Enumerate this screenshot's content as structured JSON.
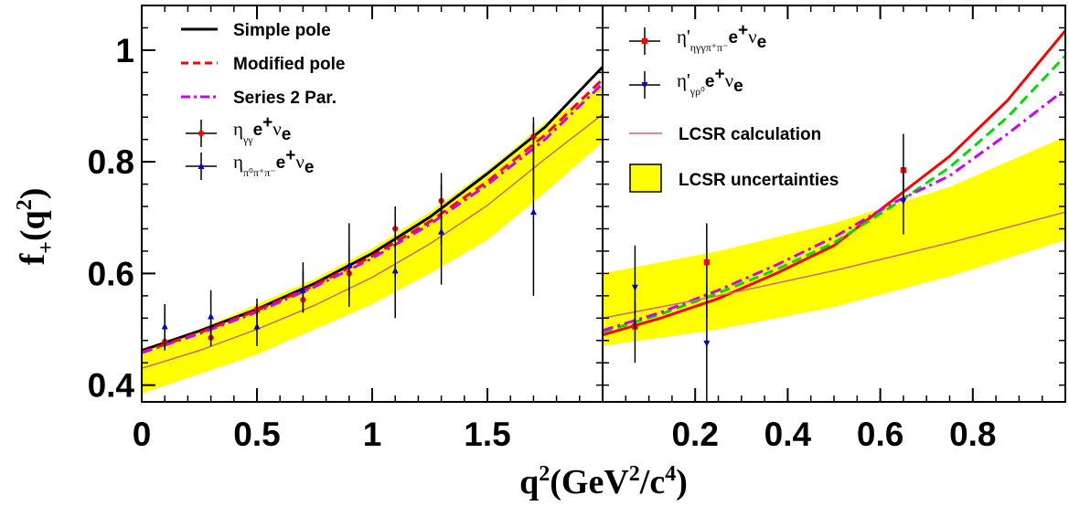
{
  "chart_data": [
    {
      "panel": "left",
      "type": "line",
      "xlim": [
        0,
        2.0
      ],
      "ylim": [
        0.37,
        1.08
      ],
      "xticks": [
        {
          "v": 0,
          "label": "0"
        },
        {
          "v": 0.5,
          "label": "0.5"
        },
        {
          "v": 1.0,
          "label": "1"
        },
        {
          "v": 1.5,
          "label": "1.5"
        }
      ],
      "yticks": [
        {
          "v": 0.4,
          "label": "0.4"
        },
        {
          "v": 0.6,
          "label": "0.6"
        },
        {
          "v": 0.8,
          "label": "0.8"
        },
        {
          "v": 1.0,
          "label": "1"
        }
      ],
      "band": {
        "name": "LCSR uncertainties",
        "color": "#ffff00",
        "x": [
          0,
          0.25,
          0.5,
          0.75,
          1.0,
          1.25,
          1.5,
          1.75,
          2.0
        ],
        "lower": [
          0.385,
          0.42,
          0.455,
          0.5,
          0.545,
          0.6,
          0.66,
          0.745,
          0.835
        ],
        "upper": [
          0.465,
          0.5,
          0.545,
          0.59,
          0.645,
          0.71,
          0.785,
          0.87,
          0.935
        ]
      },
      "series": [
        {
          "name": "Simple pole",
          "style": "solid",
          "color": "#000000",
          "width": 3,
          "x": [
            0,
            0.25,
            0.5,
            0.75,
            1.0,
            1.25,
            1.5,
            1.75,
            2.0
          ],
          "y": [
            0.462,
            0.497,
            0.536,
            0.582,
            0.636,
            0.701,
            0.779,
            0.862,
            0.97
          ]
        },
        {
          "name": "Modified pole",
          "style": "dashed",
          "color": "#ff0000",
          "width": 3,
          "x": [
            0,
            0.25,
            0.5,
            0.75,
            1.0,
            1.25,
            1.5,
            1.75,
            2.0
          ],
          "y": [
            0.459,
            0.494,
            0.534,
            0.579,
            0.631,
            0.693,
            0.765,
            0.848,
            0.948
          ]
        },
        {
          "name": "Series 2 Par.",
          "style": "dashdot",
          "color": "#cc00ff",
          "width": 3,
          "x": [
            0,
            0.25,
            0.5,
            0.75,
            1.0,
            1.25,
            1.5,
            1.75,
            2.0
          ],
          "y": [
            0.458,
            0.492,
            0.531,
            0.576,
            0.627,
            0.688,
            0.759,
            0.84,
            0.94
          ]
        },
        {
          "name": "LCSR calculation",
          "style": "solid",
          "color": "#cc6677",
          "width": 1.5,
          "legend": false,
          "x": [
            0,
            0.25,
            0.5,
            0.75,
            1.0,
            1.25,
            1.5,
            1.75,
            2.0
          ],
          "y": [
            0.43,
            0.462,
            0.5,
            0.543,
            0.593,
            0.653,
            0.722,
            0.805,
            0.885
          ]
        }
      ],
      "points": [
        {
          "name": "ηγγ e+νe",
          "marker": "circle",
          "color": "#ff0000",
          "data": [
            {
              "x": 0.1,
              "y": 0.478,
              "lo": 0.462,
              "hi": 0.53
            },
            {
              "x": 0.3,
              "y": 0.485,
              "lo": 0.47,
              "hi": 0.52
            },
            {
              "x": 0.5,
              "y": 0.536,
              "lo": 0.5,
              "hi": 0.555
            },
            {
              "x": 0.7,
              "y": 0.553,
              "lo": 0.53,
              "hi": 0.62
            },
            {
              "x": 0.9,
              "y": 0.6,
              "lo": 0.54,
              "hi": 0.69
            },
            {
              "x": 1.1,
              "y": 0.68,
              "lo": 0.59,
              "hi": 0.72
            },
            {
              "x": 1.3,
              "y": 0.73,
              "lo": 0.65,
              "hi": 0.78
            },
            {
              "x": 1.7,
              "y": 0.845,
              "lo": 0.74,
              "hi": 0.88
            }
          ]
        },
        {
          "name": "ηπ0π+π- e+νe",
          "marker": "triangle",
          "color": "#0000cc",
          "data": [
            {
              "x": 0.1,
              "y": 0.505,
              "lo": 0.47,
              "hi": 0.545
            },
            {
              "x": 0.3,
              "y": 0.523,
              "lo": 0.48,
              "hi": 0.57
            },
            {
              "x": 0.5,
              "y": 0.505,
              "lo": 0.47,
              "hi": 0.545
            },
            {
              "x": 0.7,
              "y": 0.57,
              "lo": 0.53,
              "hi": 0.605
            },
            {
              "x": 0.9,
              "y": 0.615,
              "lo": 0.56,
              "hi": 0.65
            },
            {
              "x": 1.1,
              "y": 0.605,
              "lo": 0.52,
              "hi": 0.69
            },
            {
              "x": 1.3,
              "y": 0.675,
              "lo": 0.58,
              "hi": 0.76
            },
            {
              "x": 1.7,
              "y": 0.71,
              "lo": 0.56,
              "hi": 0.87
            }
          ]
        }
      ]
    },
    {
      "panel": "right",
      "type": "line",
      "xlim": [
        0,
        1.0
      ],
      "ylim": [
        0.37,
        1.08
      ],
      "xticks": [
        {
          "v": 0.2,
          "label": "0.2"
        },
        {
          "v": 0.4,
          "label": "0.4"
        },
        {
          "v": 0.6,
          "label": "0.6"
        },
        {
          "v": 0.8,
          "label": "0.8"
        }
      ],
      "band": {
        "name": "LCSR uncertainties",
        "color": "#ffff00",
        "x": [
          0,
          0.25,
          0.5,
          0.75,
          1.0
        ],
        "lower": [
          0.47,
          0.5,
          0.54,
          0.595,
          0.66
        ],
        "upper": [
          0.6,
          0.64,
          0.69,
          0.755,
          0.845
        ]
      },
      "series": [
        {
          "name": "η'γρ0 e+νe",
          "style": "solid",
          "color": "#ff0000",
          "width": 3,
          "legend": false,
          "x": [
            0,
            0.125,
            0.25,
            0.375,
            0.5,
            0.625,
            0.75,
            0.875,
            1.0
          ],
          "y": [
            0.49,
            0.52,
            0.555,
            0.6,
            0.65,
            0.73,
            0.81,
            0.91,
            1.035
          ]
        },
        {
          "name": "η'ηγγπ+π- e+νe",
          "style": "dashed",
          "color": "#00dd00",
          "width": 3,
          "legend": false,
          "x": [
            0,
            0.125,
            0.25,
            0.375,
            0.5,
            0.625,
            0.75,
            0.875,
            1.0
          ],
          "y": [
            0.495,
            0.527,
            0.565,
            0.607,
            0.655,
            0.72,
            0.79,
            0.88,
            0.99
          ]
        },
        {
          "name": "Series 2 Par.",
          "style": "dashdot",
          "color": "#cc00ff",
          "width": 3,
          "legend": false,
          "x": [
            0,
            0.125,
            0.25,
            0.375,
            0.5,
            0.625,
            0.75,
            0.875,
            1.0
          ],
          "y": [
            0.498,
            0.53,
            0.57,
            0.615,
            0.665,
            0.725,
            0.775,
            0.85,
            0.93
          ]
        },
        {
          "name": "LCSR calculation",
          "style": "solid",
          "color": "#cc6677",
          "width": 1.5,
          "x": [
            0,
            0.25,
            0.5,
            0.75,
            1.0
          ],
          "y": [
            0.52,
            0.56,
            0.605,
            0.655,
            0.71
          ]
        }
      ],
      "points": [
        {
          "name": "η'ηγγπ+π- e+νe",
          "marker": "square",
          "color": "#ff0000",
          "data": [
            {
              "x": 0.07,
              "y": 0.505,
              "lo": 0.44,
              "hi": 0.55
            },
            {
              "x": 0.225,
              "y": 0.62,
              "lo": 0.52,
              "hi": 0.69
            },
            {
              "x": 0.65,
              "y": 0.785,
              "lo": 0.73,
              "hi": 0.85
            }
          ]
        },
        {
          "name": "η'γρ0 e+νe",
          "marker": "triangle-down",
          "color": "#0000cc",
          "data": [
            {
              "x": 0.07,
              "y": 0.575,
              "lo": 0.5,
              "hi": 0.65
            },
            {
              "x": 0.225,
              "y": 0.475,
              "lo": 0.37,
              "hi": 0.58
            },
            {
              "x": 0.65,
              "y": 0.73,
              "lo": 0.67,
              "hi": 0.79
            }
          ]
        }
      ]
    }
  ],
  "legend_left": {
    "line_items": [
      {
        "label": "Simple pole",
        "style": "solid",
        "color": "#000000"
      },
      {
        "label": "Modified pole",
        "style": "dashed",
        "color": "#ff0000"
      },
      {
        "label": "Series 2 Par.",
        "style": "dashdot",
        "color": "#cc00ff"
      }
    ],
    "point_items": [
      {
        "sym": "η",
        "sub": "γγ",
        "rest": "e",
        "sup": "+",
        "nu": "ν",
        "nusub": "e",
        "marker": "circle",
        "color": "#ff0000"
      },
      {
        "sym": "η",
        "sub": "π⁰π⁺π⁻",
        "rest": "e",
        "sup": "+",
        "nu": "ν",
        "nusub": "e",
        "marker": "triangle",
        "color": "#0000cc"
      }
    ]
  },
  "legend_right": {
    "point_items": [
      {
        "sym": "η'",
        "sub": "ηγγπ⁺π⁻",
        "rest": "e",
        "sup": "+",
        "nu": "ν",
        "nusub": "e",
        "marker": "square",
        "color": "#ff0000"
      },
      {
        "sym": "η'",
        "sub": "γρ⁰",
        "rest": "e",
        "sup": "+",
        "nu": "ν",
        "nusub": "e",
        "marker": "triangle-down",
        "color": "#0000cc"
      }
    ],
    "line_item": {
      "label": "LCSR calculation",
      "color": "#cc6677"
    },
    "band_item": {
      "label": "LCSR uncertainties",
      "color": "#ffff00"
    }
  },
  "axes": {
    "ylabel_main": "f",
    "ylabel_sub": "+",
    "ylabel_arg": "(q",
    "ylabel_sup": "2",
    "ylabel_close": ")",
    "xlabel_q": "q",
    "xlabel_sup1": "2",
    "xlabel_mid": "(GeV",
    "xlabel_sup2": "2",
    "xlabel_slash": "/c",
    "xlabel_sup3": "4",
    "xlabel_close": ")"
  }
}
